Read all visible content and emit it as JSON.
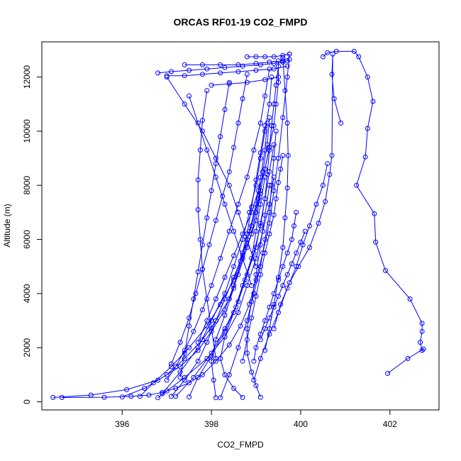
{
  "chart_data": {
    "type": "line",
    "title": "ORCAS RF01-19 CO2_FMPD",
    "xlabel": "CO2_FMPD",
    "ylabel": "Altitude (m)",
    "xlim": [
      394.2,
      403.1
    ],
    "ylim": [
      -300,
      13300
    ],
    "x_ticks": [
      396,
      398,
      400,
      402
    ],
    "y_ticks": [
      0,
      2000,
      4000,
      6000,
      8000,
      10000,
      12000
    ],
    "grid": false,
    "legend": "none",
    "marker": "open-circle",
    "color": "#0000ff",
    "series": [
      {
        "x": [
          401.95,
          402.4,
          402.75,
          402.72,
          402.68,
          402.72,
          402.72,
          402.45,
          401.9,
          401.68,
          401.65,
          401.25,
          401.45,
          401.5,
          401.62,
          401.5,
          401.3,
          401.2,
          400.8,
          400.6,
          400.5
        ],
        "y": [
          1050,
          1600,
          1950,
          1900,
          2200,
          2600,
          2900,
          3800,
          4850,
          5900,
          6950,
          8000,
          9050,
          10100,
          11100,
          12000,
          12750,
          12950,
          12950,
          12900,
          12750
        ]
      },
      {
        "x": [
          400.9,
          400.75,
          400.7,
          400.72,
          400.7,
          400.65,
          400.55,
          400.4,
          400.2,
          399.95,
          399.75,
          399.55,
          399.4
        ],
        "y": [
          10300,
          11200,
          12100,
          12850,
          9100,
          8400,
          7400,
          6600,
          5700,
          5000,
          4400,
          3600,
          2700
        ]
      },
      {
        "x": [
          400.6,
          400.5,
          400.35,
          400.2,
          400.05,
          399.9,
          399.7,
          399.5,
          399.3,
          399.1,
          398.95
        ],
        "y": [
          8800,
          8000,
          7300,
          6500,
          5800,
          5000,
          4200,
          3300,
          2500,
          1600,
          800
        ]
      },
      {
        "x": [
          399.75,
          399.7,
          399.6,
          399.5,
          399.4,
          399.3,
          399.15,
          399.0,
          398.85,
          398.65,
          398.4,
          398.1,
          397.8,
          397.5,
          397.2,
          396.9,
          396.6,
          396.2,
          395.6,
          394.65
        ],
        "y": [
          12850,
          12000,
          10500,
          9000,
          7800,
          6600,
          5500,
          4500,
          3600,
          2800,
          2100,
          1500,
          1000,
          700,
          500,
          350,
          250,
          200,
          170,
          160
        ]
      },
      {
        "x": [
          397.2,
          397.6,
          398.0,
          398.3,
          398.6,
          398.8,
          399.0,
          399.1,
          399.2,
          399.25,
          399.3,
          399.35,
          399.4,
          399.45,
          399.5
        ],
        "y": [
          200,
          900,
          1800,
          2700,
          3700,
          4700,
          5700,
          6600,
          7500,
          8400,
          9300,
          10200,
          11000,
          11700,
          12400
        ]
      },
      {
        "x": [
          396.9,
          397.3,
          397.7,
          398.0,
          398.3,
          398.5,
          398.7,
          398.85,
          399.0,
          399.1,
          399.2,
          399.3,
          399.35
        ],
        "y": [
          300,
          1100,
          2000,
          3000,
          4000,
          5000,
          6000,
          7000,
          8000,
          9000,
          10000,
          11000,
          12000
        ]
      },
      {
        "x": [
          394.45,
          395.3,
          396.1,
          396.8,
          397.3,
          397.7,
          398.0,
          398.3,
          398.5,
          398.7,
          398.85,
          399.0,
          399.1,
          399.2,
          399.25
        ],
        "y": [
          160,
          250,
          450,
          800,
          1300,
          1900,
          2600,
          3400,
          4300,
          5300,
          6300,
          7300,
          8300,
          9300,
          10300
        ]
      },
      {
        "x": [
          398.1,
          398.05,
          398.0,
          398.1,
          398.3,
          398.5,
          398.65,
          398.8,
          398.9,
          399.0,
          399.1,
          399.2
        ],
        "y": [
          150,
          800,
          1500,
          2300,
          3200,
          4200,
          5200,
          6200,
          7200,
          8200,
          9200,
          10200
        ]
      },
      {
        "x": [
          396.4,
          396.7,
          397.1,
          397.5,
          397.9,
          398.2,
          398.5,
          398.7,
          398.9,
          399.05,
          399.15,
          399.25,
          399.3
        ],
        "y": [
          200,
          700,
          1300,
          2000,
          2800,
          3600,
          4500,
          5500,
          6500,
          7500,
          8500,
          9500,
          10500
        ]
      },
      {
        "x": [
          397.5,
          397.7,
          398.0,
          398.3,
          398.55,
          398.75,
          398.95,
          399.1,
          399.2,
          399.3,
          399.4
        ],
        "y": [
          180,
          900,
          1700,
          2600,
          3500,
          4500,
          5500,
          6500,
          7500,
          8500,
          9500
        ]
      },
      {
        "x": [
          399.1,
          399.0,
          398.9,
          398.8,
          398.8,
          398.9,
          399.0,
          399.1,
          399.2,
          399.3
        ],
        "y": [
          170,
          600,
          1100,
          1800,
          2700,
          3700,
          4700,
          5800,
          6900,
          8000
        ]
      },
      {
        "x": [
          398.7,
          398.5,
          398.3,
          398.2,
          398.3,
          398.5,
          398.7,
          398.9,
          399.0,
          399.1,
          399.2
        ],
        "y": [
          160,
          500,
          1000,
          1600,
          2400,
          3300,
          4300,
          5300,
          6300,
          7300,
          8300
        ]
      },
      {
        "x": [
          396.0,
          396.5,
          397.0,
          397.4,
          397.8,
          398.1,
          398.4,
          398.6,
          398.8,
          399.0,
          399.1
        ],
        "y": [
          180,
          500,
          1000,
          1600,
          2300,
          3000,
          3800,
          4700,
          5700,
          6700,
          7700
        ]
      },
      {
        "x": [
          398.2,
          398.4,
          398.6,
          398.8,
          398.95,
          399.1,
          399.2,
          399.3,
          399.35,
          399.4,
          399.45
        ],
        "y": [
          150,
          1000,
          2000,
          3000,
          4000,
          5000,
          6000,
          7000,
          8000,
          9000,
          10000
        ]
      },
      {
        "x": [
          397.1,
          397.4,
          397.7,
          397.9,
          398.1,
          398.3,
          398.5,
          398.7,
          398.9,
          399.0,
          399.1,
          399.2,
          399.3,
          399.35
        ],
        "y": [
          200,
          800,
          1500,
          2200,
          3000,
          3800,
          4600,
          5400,
          6200,
          7000,
          7800,
          8600,
          9400,
          10200
        ]
      },
      {
        "x": [
          396.8,
          397.0,
          397.4,
          397.9,
          398.3,
          398.6,
          398.8,
          399.0,
          399.15,
          399.3,
          399.4
        ],
        "y": [
          150,
          400,
          900,
          1600,
          2400,
          3300,
          4300,
          5300,
          6300,
          7300,
          8300
        ]
      },
      {
        "x": [
          399.5,
          399.5,
          399.45,
          399.4,
          399.3,
          399.2,
          399.05,
          398.9,
          398.7,
          398.5,
          398.3,
          398.1,
          397.9,
          397.7
        ],
        "y": [
          12600,
          11800,
          11000,
          10200,
          9400,
          8600,
          7800,
          7000,
          6200,
          5400,
          4600,
          3800,
          3000,
          2200
        ]
      },
      {
        "x": [
          399.3,
          399.2,
          399.1,
          398.95,
          398.8,
          398.6,
          398.4,
          398.2,
          398.0,
          397.8,
          397.6,
          397.4,
          397.2,
          397.0
        ],
        "y": [
          12300,
          11300,
          10300,
          9300,
          8300,
          7300,
          6300,
          5300,
          4300,
          3400,
          2600,
          1900,
          1300,
          800
        ]
      },
      {
        "x": [
          398.8,
          398.7,
          398.6,
          398.5,
          398.4,
          398.25,
          398.1,
          397.95,
          397.8,
          397.65,
          397.5,
          397.3,
          397.1
        ],
        "y": [
          12100,
          11200,
          10300,
          9400,
          8500,
          7600,
          6700,
          5800,
          4900,
          4000,
          3100,
          2200,
          1400
        ]
      },
      {
        "x": [
          398.4,
          398.3,
          398.2,
          398.1,
          398.0,
          397.9,
          397.8,
          397.7,
          397.6,
          397.5,
          397.4,
          397.3
        ],
        "y": [
          11800,
          10800,
          9800,
          8800,
          7800,
          6800,
          5800,
          4800,
          3800,
          2800,
          1800,
          900
        ]
      },
      {
        "x": [
          397.9,
          397.8,
          397.75,
          397.7,
          397.7,
          397.75,
          397.8,
          397.9,
          398.0,
          398.1
        ],
        "y": [
          11500,
          10400,
          9300,
          8200,
          7100,
          6000,
          4900,
          3800,
          2700,
          1600
        ]
      },
      {
        "x": [
          397.5,
          397.7,
          397.9,
          398.1,
          398.3,
          398.5,
          398.7,
          398.9
        ],
        "y": [
          11300,
          10300,
          9300,
          8300,
          7300,
          6300,
          5300,
          4300
        ]
      },
      {
        "x": [
          397.0,
          397.4,
          397.8,
          398.1,
          398.4,
          398.6,
          398.8,
          399.0
        ],
        "y": [
          12000,
          11000,
          10000,
          9000,
          8000,
          7000,
          6000,
          5000
        ]
      },
      {
        "x": [
          396.8,
          397.1,
          397.5,
          397.9,
          398.3,
          398.7,
          399.1,
          399.4,
          399.6,
          399.7,
          399.75
        ],
        "y": [
          12150,
          12200,
          12250,
          12300,
          12350,
          12400,
          12450,
          12500,
          12550,
          12600,
          12650
        ]
      },
      {
        "x": [
          397.0,
          397.4,
          397.8,
          398.2,
          398.6,
          399.0,
          399.4,
          399.7
        ],
        "y": [
          12050,
          12050,
          12100,
          12150,
          12200,
          12250,
          12300,
          12400
        ]
      },
      {
        "x": [
          397.4,
          397.8,
          398.2,
          398.6,
          399.0,
          399.3,
          399.6
        ],
        "y": [
          12450,
          12450,
          12450,
          12450,
          12500,
          12550,
          12600
        ]
      },
      {
        "x": [
          398.0,
          398.4,
          398.8,
          399.2,
          399.5
        ],
        "y": [
          11700,
          11750,
          11800,
          11900,
          12000
        ]
      },
      {
        "x": [
          398.8,
          399.0,
          399.2,
          399.4,
          399.6,
          399.75
        ],
        "y": [
          12750,
          12750,
          12750,
          12750,
          12800,
          12850
        ]
      },
      {
        "x": [
          399.6,
          399.65,
          399.7,
          399.72,
          399.7,
          399.65,
          399.6,
          399.5,
          399.4,
          399.3,
          399.2
        ],
        "y": [
          12700,
          11500,
          10300,
          9100,
          7900,
          6800,
          5700,
          4600,
          3600,
          2700,
          1900
        ]
      },
      {
        "x": [
          399.9,
          399.85,
          399.8,
          399.7,
          399.6,
          399.5,
          399.4,
          399.3,
          399.2,
          399.1,
          399.0,
          398.95
        ],
        "y": [
          7000,
          6500,
          6000,
          5500,
          5000,
          4500,
          4000,
          3500,
          3000,
          2500,
          2000,
          1500
        ]
      },
      {
        "x": [
          400.1,
          400.0,
          399.9,
          399.8,
          399.7,
          399.6,
          399.5,
          399.4,
          399.3,
          399.2,
          399.1
        ],
        "y": [
          6300,
          5900,
          5500,
          5100,
          4700,
          4300,
          3900,
          3500,
          3100,
          2700,
          2300
        ]
      },
      {
        "x": [
          399.6,
          399.55,
          399.5,
          399.45,
          399.4,
          399.3,
          399.2,
          399.1,
          399.0,
          398.9,
          398.8,
          398.7
        ],
        "y": [
          9100,
          8600,
          8100,
          7500,
          6900,
          6200,
          5500,
          4700,
          3900,
          3100,
          2300,
          1500
        ]
      }
    ]
  }
}
